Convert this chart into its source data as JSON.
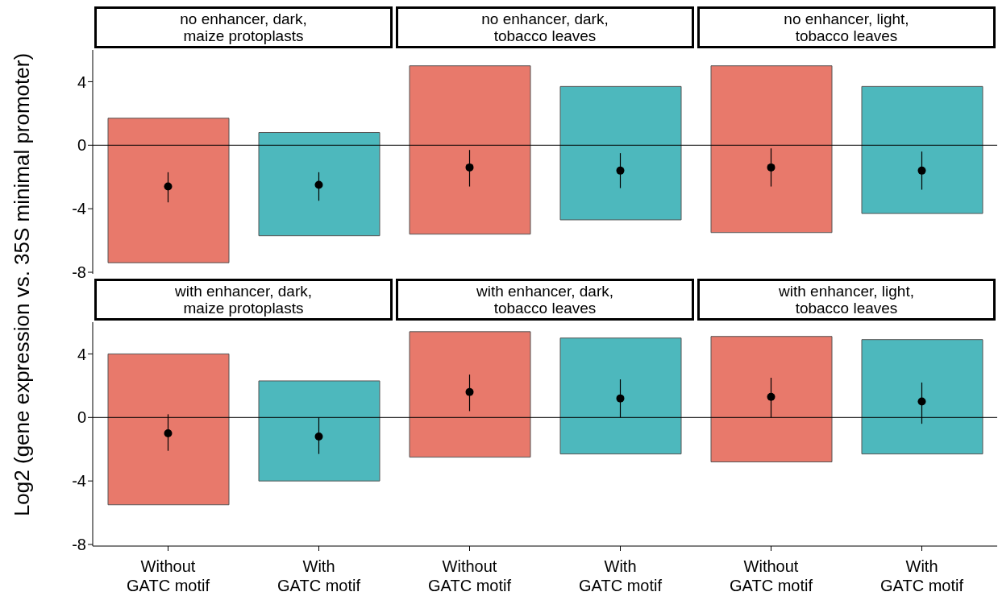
{
  "chart_data": [
    {
      "type": "bar",
      "annotations": [
        "no enhancer, dark,\nmaize protoplasts",
        "no enhancer, dark,\ntobacco leaves",
        "no enhancer, light,\ntobacco leaves"
      ],
      "ylabel": "Log2 (gene expression vs. 35S minimal promoter)",
      "categories": [
        null,
        null,
        null,
        null,
        null,
        null
      ],
      "series": [
        {
          "base": [
            -7.4,
            -5.7,
            -5.6,
            -4.7,
            -5.5,
            -4.3
          ],
          "values": [
            9.1,
            6.5,
            10.6,
            8.4,
            10.5,
            8.0
          ],
          "colors": [
            "#e8796b",
            "#4db8bd",
            "#e8796b",
            "#4db8bd",
            "#e8796b",
            "#4db8bd"
          ]
        },
        {
          "type": "scatter",
          "color": "#000000",
          "values": [
            -2.6,
            -2.5,
            -1.4,
            -1.6,
            -1.4,
            -1.6
          ],
          "errors": [
            [
              -3.6,
              -1.7
            ],
            [
              -3.5,
              -1.7
            ],
            [
              -2.6,
              -0.3
            ],
            [
              -2.7,
              -0.5
            ],
            [
              -2.6,
              -0.2
            ],
            [
              -2.8,
              -0.4
            ]
          ]
        }
      ],
      "ylim": [
        -8.1,
        6
      ],
      "yticks": [
        -8,
        -4,
        0,
        4
      ],
      "ref_lines": [
        {
          "axis": "y",
          "value": 0,
          "color": "#000000"
        }
      ],
      "tick_labels": "y"
    },
    {
      "type": "bar",
      "annotations": [
        "with enhancer, dark,\nmaize protoplasts",
        "with enhancer, dark,\ntobacco leaves",
        "with enhancer, light,\ntobacco leaves"
      ],
      "categories": [
        "Without\nGATC motif",
        "With\nGATC motif",
        "Without\nGATC motif",
        "With\nGATC motif",
        "Without\nGATC motif",
        "With\nGATC motif"
      ],
      "series": [
        {
          "base": [
            -5.5,
            -4.0,
            -2.5,
            -2.3,
            -2.8,
            -2.3
          ],
          "values": [
            9.5,
            6.3,
            7.9,
            7.3,
            7.9,
            7.2
          ],
          "colors": [
            "#e8796b",
            "#4db8bd",
            "#e8796b",
            "#4db8bd",
            "#e8796b",
            "#4db8bd"
          ]
        },
        {
          "type": "scatter",
          "color": "#000000",
          "values": [
            -1.0,
            -1.2,
            1.6,
            1.2,
            1.3,
            1.0
          ],
          "errors": [
            [
              -2.1,
              0.2
            ],
            [
              -2.3,
              0.0
            ],
            [
              0.4,
              2.7
            ],
            [
              0.0,
              2.4
            ],
            [
              0.0,
              2.5
            ],
            [
              -0.4,
              2.2
            ]
          ]
        }
      ],
      "ylim": [
        -8.1,
        6
      ],
      "yticks": [
        -8,
        -4,
        0,
        4
      ],
      "ref_lines": [
        {
          "axis": "y",
          "value": 0,
          "color": "#000000"
        }
      ]
    }
  ]
}
